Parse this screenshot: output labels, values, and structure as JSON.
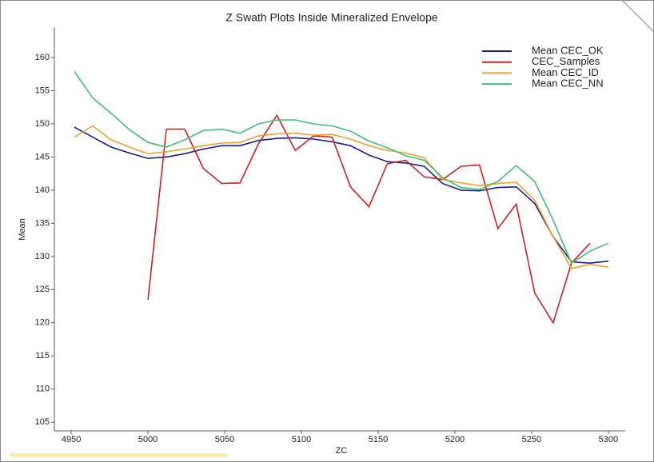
{
  "chart_data": {
    "type": "line",
    "title": "Z Swath Plots Inside Mineralized Envelope",
    "x_label": "ZC",
    "y_label": "Mean",
    "x": [
      4952,
      4964,
      4976,
      4988,
      5000,
      5012,
      5024,
      5036,
      5048,
      5060,
      5072,
      5084,
      5096,
      5108,
      5120,
      5132,
      5144,
      5156,
      5168,
      5180,
      5192,
      5204,
      5216,
      5228,
      5240,
      5252,
      5264,
      5276,
      5288,
      5300
    ],
    "series": [
      {
        "name": "Mean CEC_OK",
        "color": "#1c1c8f",
        "values": [
          149.5,
          148,
          146.5,
          145.6,
          144.8,
          145,
          145.5,
          146.2,
          146.7,
          146.7,
          147.5,
          147.8,
          147.9,
          147.7,
          147.3,
          146.7,
          145.3,
          144.3,
          144.1,
          143.6,
          141,
          140,
          139.9,
          140.4,
          140.5,
          138,
          133,
          129.2,
          129,
          129.3
        ]
      },
      {
        "name": "CEC_Samples",
        "color": "#cc2222",
        "values": [
          null,
          null,
          null,
          null,
          123.5,
          149.2,
          149.2,
          143.3,
          141,
          141.1,
          147,
          151.3,
          146,
          148.2,
          148,
          140.5,
          137.5,
          144,
          144.5,
          142,
          141.6,
          143.6,
          143.8,
          134.2,
          137.9,
          124.5,
          120,
          129,
          132,
          null
        ]
      },
      {
        "name": "Mean CEC_ID",
        "color": "#f0a030",
        "values": [
          148,
          149.7,
          147.6,
          146.5,
          145.5,
          145.8,
          146.2,
          146.7,
          147.1,
          147.2,
          148.2,
          148.5,
          148.6,
          148.3,
          148.4,
          147.7,
          146.7,
          146,
          145.6,
          144.9,
          141.6,
          141.1,
          140.7,
          141,
          141.2,
          138.5,
          133,
          128.2,
          128.8,
          128.4
        ]
      },
      {
        "name": "Mean CEC_NN",
        "color": "#40c070",
        "values": [
          157.9,
          153.9,
          151.6,
          149.1,
          147.2,
          146.5,
          147.6,
          149,
          149.2,
          148.6,
          150,
          150.6,
          150.6,
          150,
          149.7,
          148.9,
          147.4,
          146.4,
          145.2,
          144.5,
          141.9,
          140.4,
          140.1,
          141.3,
          143.7,
          141.3,
          135.5,
          129,
          130.8,
          132
        ]
      }
    ],
    "xlim": [
      4939,
      5311
    ],
    "xticks": [
      4950,
      5000,
      5050,
      5100,
      5150,
      5200,
      5250,
      5300
    ],
    "ylim": [
      103.7,
      164.5
    ],
    "yticks": [
      105,
      110,
      115,
      120,
      125,
      130,
      135,
      140,
      145,
      150,
      155,
      160
    ],
    "grid": false,
    "legend": "upper right"
  }
}
